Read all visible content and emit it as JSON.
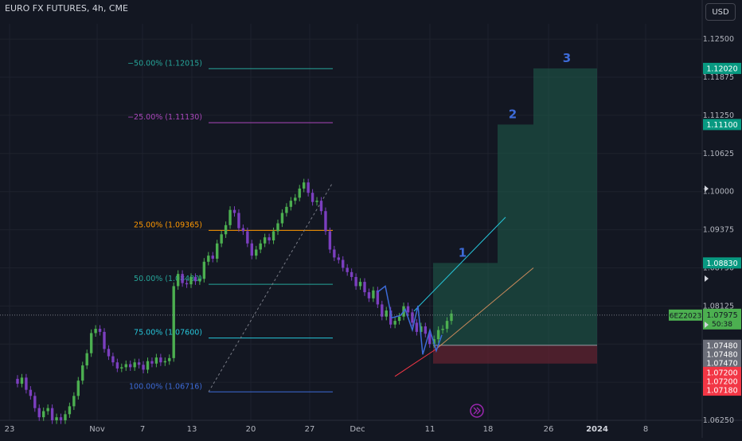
{
  "header": {
    "symbol": "EURO FX FUTURES, 4h, CME",
    "currency": "USD"
  },
  "theme": {
    "background": "#131722",
    "up": "#4caf50",
    "down": "#7b3fbf",
    "grid": "#1e222d",
    "text": "#b2b5be",
    "target_fill": "#1f5e4c",
    "stop_fill": "#5b2230",
    "badge_green": "#089981",
    "badge_red": "#f23645",
    "badge_gray": "#6a6d78",
    "wave_blue": "#3d6bd8",
    "channel_cyan": "#26c6da",
    "channel_orange": "#c8895b",
    "channel_red": "#f23645"
  },
  "chart_data": {
    "type": "candlestick",
    "title": "",
    "x_ticks": [
      "23",
      "Nov",
      "7",
      "13",
      "20",
      "27",
      "Dec",
      "11",
      "18",
      "26",
      "2024",
      "8"
    ],
    "y_ticks": [
      "1.12500",
      "1.11875",
      "1.11250",
      "1.10625",
      "1.10000",
      "1.09375",
      "1.08750",
      "1.08125",
      "1.07500",
      "1.06875",
      "1.06250"
    ],
    "ylim": [
      1.0625,
      1.1275
    ],
    "current_price": "1.07975",
    "countdown": "50:38",
    "contract": "6EZ2023",
    "fibonacci": [
      {
        "label": "−50.00% (1.12015)",
        "price": 1.12015,
        "color": "#26a69a"
      },
      {
        "label": "−25.00% (1.11130)",
        "price": 1.1113,
        "color": "#ab47bc"
      },
      {
        "label": "25.00% (1.09365)",
        "price": 1.09365,
        "color": "#ff9800"
      },
      {
        "label": "50.00% (1.08480)",
        "price": 1.0848,
        "color": "#26a69a"
      },
      {
        "label": "75.00% (1.07600)",
        "price": 1.076,
        "color": "#26c6da"
      },
      {
        "label": "100.00% (1.06716)",
        "price": 1.06716,
        "color": "#3d6bd8"
      }
    ],
    "targets": [
      {
        "label": "1",
        "price": 1.0883
      },
      {
        "label": "2",
        "price": 1.111
      },
      {
        "label": "3",
        "price": 1.1202
      }
    ],
    "price_badges": [
      {
        "text": "1.12020",
        "price": 1.1202,
        "kind": "green"
      },
      {
        "text": "1.11100",
        "price": 1.111,
        "kind": "green"
      },
      {
        "text": "1.08830",
        "price": 1.0883,
        "kind": "green"
      },
      {
        "text": "1.07480",
        "price": 1.0748,
        "kind": "gray"
      },
      {
        "text": "1.07480",
        "price": 1.07335,
        "kind": "gray"
      },
      {
        "text": "1.07470",
        "price": 1.0719,
        "kind": "gray"
      },
      {
        "text": "1.07200",
        "price": 1.07035,
        "kind": "red"
      },
      {
        "text": "1.07200",
        "price": 1.0689,
        "kind": "red"
      },
      {
        "text": "1.07180",
        "price": 1.06745,
        "kind": "red"
      }
    ],
    "series": [
      {
        "name": "",
        "values": [
          1.0685,
          1.0695,
          1.0675,
          1.0665,
          1.0645,
          1.063,
          1.064,
          1.0645,
          1.0625,
          1.063,
          1.0625,
          1.0635,
          1.0648,
          1.0665,
          1.069,
          1.0715,
          1.0735,
          1.0768,
          1.0775,
          1.077,
          1.0742,
          1.073,
          1.072,
          1.071,
          1.0712,
          1.0717,
          1.0712,
          1.072,
          1.0716,
          1.0708,
          1.0722,
          1.0718,
          1.0728,
          1.072,
          1.0722,
          1.0727,
          1.0845,
          1.0865,
          1.085,
          1.0848,
          1.086,
          1.0853,
          1.0857,
          1.0885,
          1.0895,
          1.089,
          1.0915,
          1.093,
          1.0945,
          1.097,
          1.0965,
          1.094,
          1.0935,
          1.0915,
          1.0895,
          1.0905,
          1.0915,
          1.0925,
          1.092,
          1.0935,
          1.0948,
          1.0965,
          1.0975,
          1.0985,
          1.099,
          1.1005,
          1.1015,
          1.0998,
          1.0983,
          1.0985,
          1.0968,
          1.0935,
          1.0905,
          1.0892,
          1.0888,
          1.0875,
          1.0868,
          1.086,
          1.0845,
          1.0852,
          1.0835,
          1.0825,
          1.0838,
          1.0815,
          1.0795,
          1.0805,
          1.0782,
          1.0788,
          1.0795,
          1.0812,
          1.0802,
          1.0785,
          1.077,
          1.0779,
          1.0767,
          1.075,
          1.0758,
          1.0773,
          1.0775,
          1.0788,
          1.08
        ]
      }
    ]
  }
}
